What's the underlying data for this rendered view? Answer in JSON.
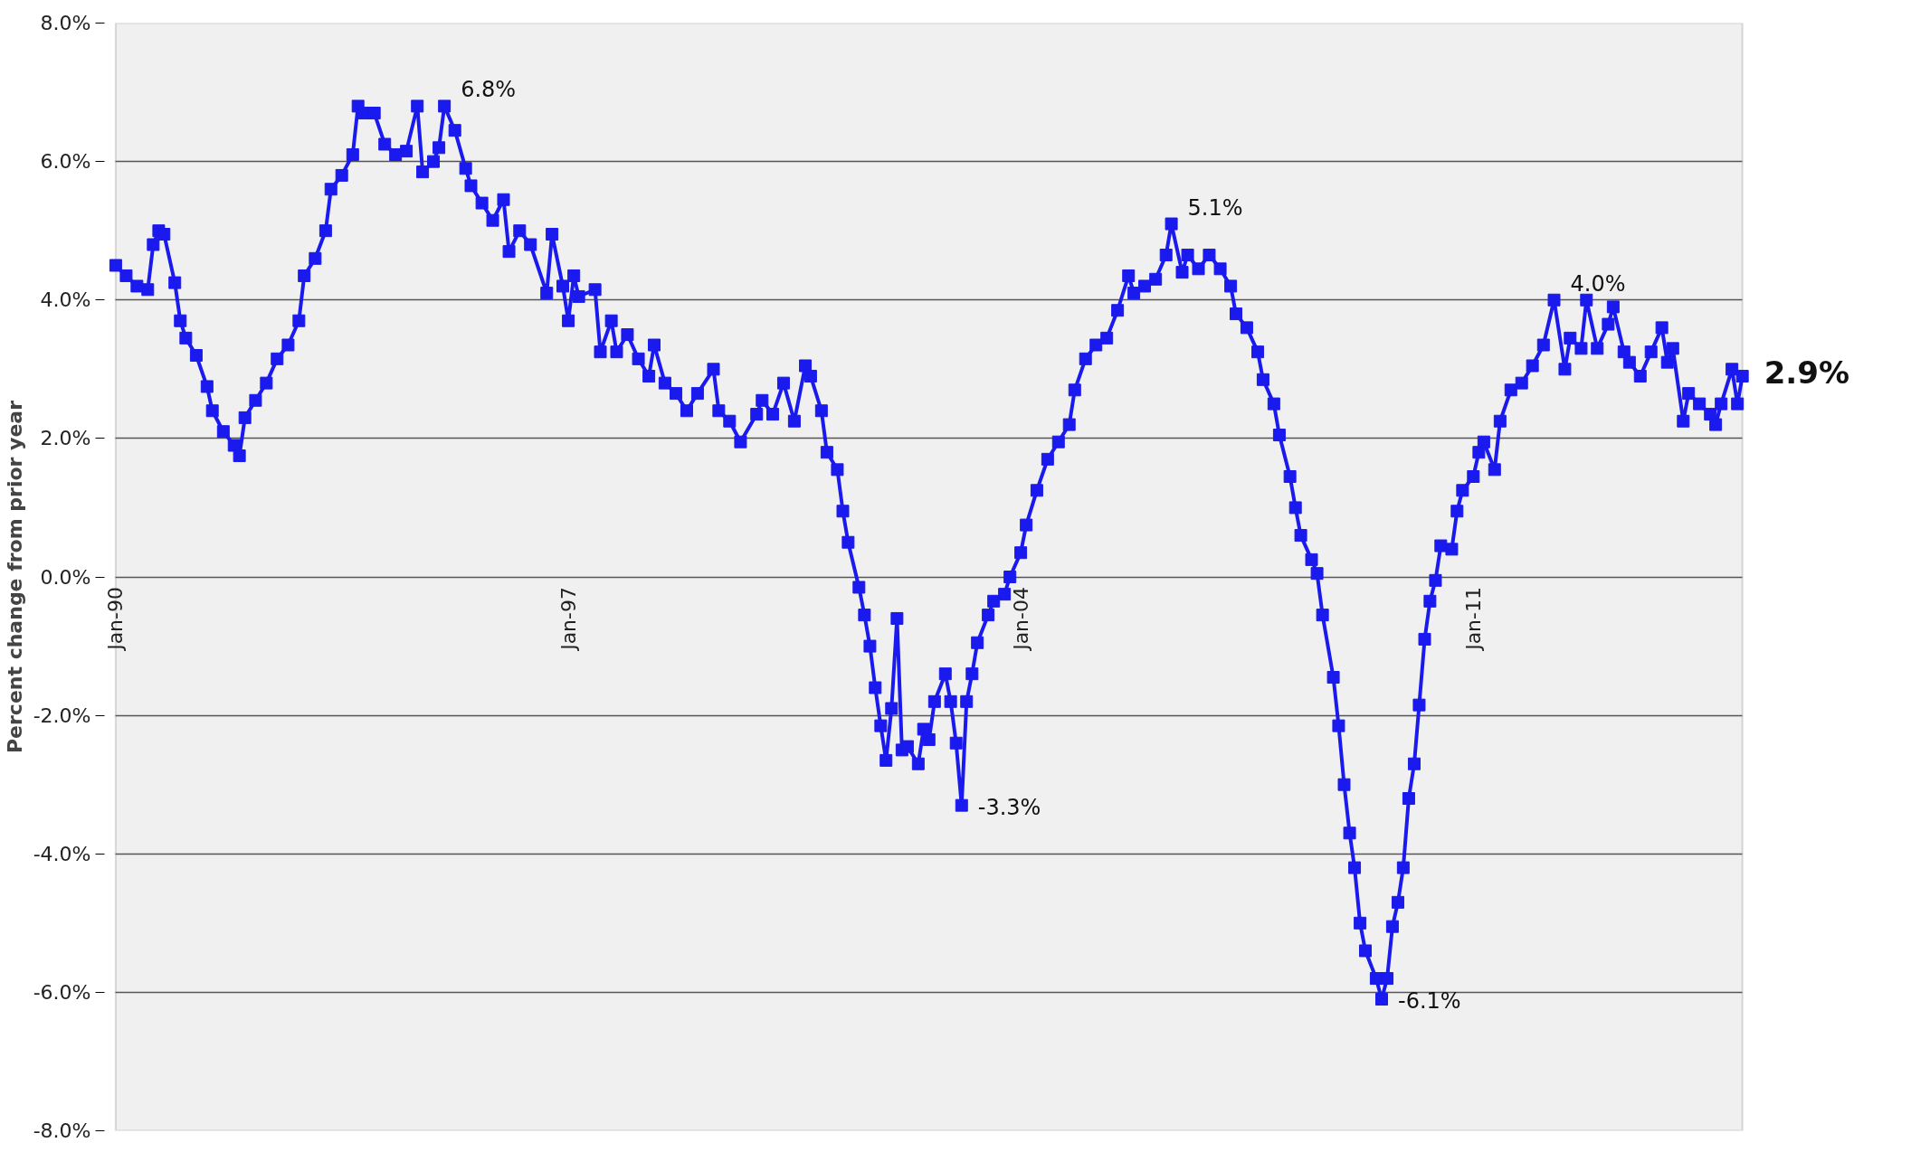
{
  "chart_data": {
    "type": "line",
    "ylabel": "Percent change from prior year",
    "x": [
      "1990-01",
      "1990-03",
      "1990-05",
      "1990-07",
      "1990-08",
      "1990-09",
      "1990-10",
      "1990-12",
      "1991-01",
      "1991-02",
      "1991-04",
      "1991-06",
      "1991-07",
      "1991-09",
      "1991-11",
      "1991-12",
      "1992-01",
      "1992-03",
      "1992-05",
      "1992-07",
      "1992-09",
      "1992-11",
      "1992-12",
      "1993-02",
      "1993-04",
      "1993-05",
      "1993-07",
      "1993-09",
      "1993-10",
      "1993-11",
      "1994-01",
      "1994-03",
      "1994-05",
      "1994-07",
      "1994-09",
      "1994-10",
      "1994-12",
      "1995-01",
      "1995-02",
      "1995-04",
      "1995-06",
      "1995-07",
      "1995-09",
      "1995-11",
      "1996-01",
      "1996-02",
      "1996-04",
      "1996-06",
      "1996-09",
      "1996-10",
      "1996-12",
      "1997-01",
      "1997-02",
      "1997-03",
      "1997-06",
      "1997-07",
      "1997-09",
      "1997-10",
      "1997-12",
      "1998-02",
      "1998-04",
      "1998-05",
      "1998-07",
      "1998-09",
      "1998-11",
      "1999-01",
      "1999-04",
      "1999-05",
      "1999-07",
      "1999-09",
      "1999-12",
      "2000-01",
      "2000-03",
      "2000-05",
      "2000-07",
      "2000-09",
      "2000-10",
      "2000-12",
      "2001-01",
      "2001-03",
      "2001-04",
      "2001-05",
      "2001-07",
      "2001-08",
      "2001-09",
      "2001-10",
      "2001-11",
      "2001-12",
      "2002-01",
      "2002-02",
      "2002-03",
      "2002-04",
      "2002-06",
      "2002-07",
      "2002-08",
      "2002-09",
      "2002-11",
      "2002-12",
      "2003-01",
      "2003-02",
      "2003-03",
      "2003-04",
      "2003-05",
      "2003-07",
      "2003-08",
      "2003-10",
      "2003-11",
      "2004-01",
      "2004-02",
      "2004-04",
      "2004-06",
      "2004-08",
      "2004-10",
      "2004-11",
      "2005-01",
      "2005-03",
      "2005-05",
      "2005-07",
      "2005-09",
      "2005-10",
      "2005-12",
      "2006-02",
      "2006-04",
      "2006-05",
      "2006-07",
      "2006-08",
      "2006-10",
      "2006-12",
      "2007-02",
      "2007-04",
      "2007-05",
      "2007-07",
      "2007-09",
      "2007-10",
      "2007-12",
      "2008-01",
      "2008-03",
      "2008-04",
      "2008-05",
      "2008-07",
      "2008-08",
      "2008-09",
      "2008-11",
      "2008-12",
      "2009-01",
      "2009-02",
      "2009-03",
      "2009-04",
      "2009-05",
      "2009-07",
      "2009-08",
      "2009-09",
      "2009-10",
      "2009-11",
      "2009-12",
      "2010-01",
      "2010-02",
      "2010-03",
      "2010-04",
      "2010-05",
      "2010-06",
      "2010-07",
      "2010-09",
      "2010-10",
      "2010-11",
      "2011-01",
      "2011-02",
      "2011-03",
      "2011-05",
      "2011-06",
      "2011-08",
      "2011-10",
      "2011-12",
      "2012-02",
      "2012-04",
      "2012-06",
      "2012-07",
      "2012-09",
      "2012-10",
      "2012-12",
      "2013-02",
      "2013-03",
      "2013-05",
      "2013-06",
      "2013-08",
      "2013-10",
      "2013-12",
      "2014-01",
      "2014-02",
      "2014-04",
      "2014-05",
      "2014-07",
      "2014-09",
      "2014-10",
      "2014-11",
      "2015-01",
      "2015-02",
      "2015-03"
    ],
    "series": [
      {
        "color": "#1a1aee",
        "values": [
          4.5,
          4.35,
          4.2,
          4.15,
          4.8,
          5.0,
          4.95,
          4.25,
          3.7,
          3.45,
          3.2,
          2.75,
          2.4,
          2.1,
          1.9,
          1.75,
          2.3,
          2.55,
          2.8,
          3.15,
          3.35,
          3.7,
          4.35,
          4.6,
          5.0,
          5.6,
          5.8,
          6.1,
          6.8,
          6.7,
          6.7,
          6.25,
          6.1,
          6.15,
          6.8,
          5.85,
          6.0,
          6.2,
          6.8,
          6.45,
          5.9,
          5.65,
          5.4,
          5.15,
          5.45,
          4.7,
          5.0,
          4.8,
          4.1,
          4.95,
          4.2,
          3.7,
          4.35,
          4.05,
          4.15,
          3.25,
          3.7,
          3.25,
          3.5,
          3.15,
          2.9,
          3.35,
          2.8,
          2.65,
          2.4,
          2.65,
          3.0,
          2.4,
          2.25,
          1.95,
          2.35,
          2.55,
          2.35,
          2.8,
          2.25,
          3.05,
          2.9,
          2.4,
          1.8,
          1.55,
          0.95,
          0.5,
          -0.15,
          -0.55,
          -1.0,
          -1.6,
          -2.15,
          -2.65,
          -1.9,
          -0.6,
          -2.5,
          -2.45,
          -2.7,
          -2.2,
          -2.35,
          -1.8,
          -1.4,
          -1.8,
          -2.4,
          -3.3,
          -1.8,
          -1.4,
          -0.95,
          -0.55,
          -0.35,
          -0.25,
          0.0,
          0.35,
          0.75,
          1.25,
          1.7,
          1.95,
          2.2,
          2.7,
          3.15,
          3.35,
          3.45,
          3.85,
          4.35,
          4.1,
          4.2,
          4.3,
          4.65,
          5.1,
          4.4,
          4.65,
          4.45,
          4.65,
          4.45,
          4.2,
          3.8,
          3.6,
          3.25,
          2.85,
          2.5,
          2.05,
          1.45,
          1.0,
          0.6,
          0.25,
          0.05,
          -0.55,
          -1.45,
          -2.15,
          -3.0,
          -3.7,
          -4.2,
          -5.0,
          -5.4,
          -5.8,
          -6.1,
          -5.8,
          -5.05,
          -4.7,
          -4.2,
          -3.2,
          -2.7,
          -1.85,
          -0.9,
          -0.35,
          -0.05,
          0.45,
          0.4,
          0.95,
          1.25,
          1.45,
          1.8,
          1.95,
          1.55,
          2.25,
          2.7,
          2.8,
          3.05,
          3.35,
          4.0,
          3.0,
          3.45,
          3.3,
          4.0,
          3.3,
          3.65,
          3.9,
          3.25,
          3.1,
          2.9,
          3.25,
          3.6,
          3.1,
          3.3,
          2.25,
          2.65,
          2.5,
          2.35,
          2.2,
          2.5,
          3.0,
          2.5,
          2.9
        ]
      }
    ],
    "xlim": [
      "1990-01",
      "2015-03"
    ],
    "xticks": [
      {
        "value": "1990-01",
        "label": "Jan-90"
      },
      {
        "value": "1997-01",
        "label": "Jan-97"
      },
      {
        "value": "2004-01",
        "label": "Jan-04"
      },
      {
        "value": "2011-01",
        "label": "Jan-11"
      }
    ],
    "ylim": [
      -8,
      8
    ],
    "yticks": [
      {
        "value": -8,
        "label": "-8.0%"
      },
      {
        "value": -6,
        "label": "-6.0%"
      },
      {
        "value": -4,
        "label": "-4.0%"
      },
      {
        "value": -2,
        "label": "-2.0%"
      },
      {
        "value": 0,
        "label": "0.0%"
      },
      {
        "value": 2,
        "label": "2.0%"
      },
      {
        "value": 4,
        "label": "4.0%"
      },
      {
        "value": 6,
        "label": "6.0%"
      },
      {
        "value": 8,
        "label": "8.0%"
      }
    ],
    "grid": "y",
    "marker": "square",
    "line_style": "solid",
    "annotations": [
      {
        "text": "6.8%",
        "x": "1995-02",
        "y": 6.8
      },
      {
        "text": "5.1%",
        "x": "2006-05",
        "y": 5.1
      },
      {
        "text": "-3.3%",
        "x": "2003-02",
        "y": -3.3
      },
      {
        "text": "-6.1%",
        "x": "2009-08",
        "y": -6.1
      },
      {
        "text": "4.0%",
        "x": "2012-04",
        "y": 4.0
      },
      {
        "text": "2.9%",
        "x": "2015-03",
        "y": 2.9
      }
    ]
  }
}
